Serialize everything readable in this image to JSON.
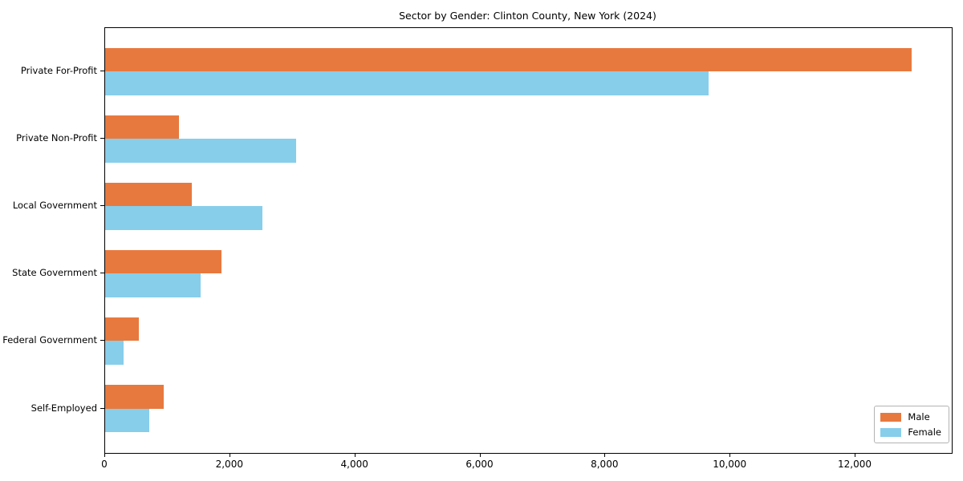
{
  "figure": {
    "title": "Sector by Gender: Clinton County, New York (2024)"
  },
  "chart_data": {
    "type": "bar",
    "orientation": "horizontal",
    "title": "Sector by Gender: Clinton County, New York (2024)",
    "categories": [
      "Private For-Profit",
      "Private Non-Profit",
      "Local Government",
      "State Government",
      "Federal Government",
      "Self-Employed"
    ],
    "series": [
      {
        "name": "Male",
        "color": "#e8793e",
        "values": [
          12900,
          1180,
          1390,
          1860,
          540,
          930
        ]
      },
      {
        "name": "Female",
        "color": "#87ceeb",
        "values": [
          9650,
          3050,
          2520,
          1530,
          290,
          710
        ]
      }
    ],
    "xlabel": "",
    "ylabel": "",
    "xlim": [
      0,
      13540
    ],
    "xticks": [
      0,
      2000,
      4000,
      6000,
      8000,
      10000,
      12000
    ],
    "xtick_labels": [
      "0",
      "2,000",
      "4,000",
      "6,000",
      "8,000",
      "10,000",
      "12,000"
    ],
    "grid": false,
    "background": "#ffffff",
    "legend": {
      "position": "lower right",
      "entries": [
        {
          "label": "Male",
          "color": "#e8793e"
        },
        {
          "label": "Female",
          "color": "#87ceeb"
        }
      ]
    }
  }
}
